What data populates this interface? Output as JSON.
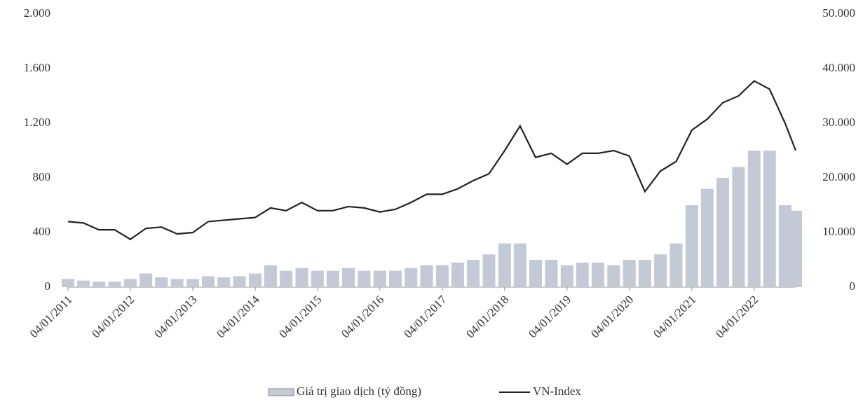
{
  "chart_data": {
    "type": "bar-line",
    "x": [
      "04/01/2011",
      "04/04/2011",
      "04/07/2011",
      "04/10/2011",
      "04/01/2012",
      "04/04/2012",
      "04/07/2012",
      "04/10/2012",
      "04/01/2013",
      "04/04/2013",
      "04/07/2013",
      "04/10/2013",
      "04/01/2014",
      "04/04/2014",
      "04/07/2014",
      "04/10/2014",
      "04/01/2015",
      "04/04/2015",
      "04/07/2015",
      "04/10/2015",
      "04/01/2016",
      "04/04/2016",
      "04/07/2016",
      "04/10/2016",
      "04/01/2017",
      "04/04/2017",
      "04/07/2017",
      "04/10/2017",
      "04/01/2018",
      "04/04/2018",
      "04/07/2018",
      "04/10/2018",
      "04/01/2019",
      "04/04/2019",
      "04/07/2019",
      "04/10/2019",
      "04/01/2020",
      "04/04/2020",
      "04/07/2020",
      "04/10/2020",
      "04/01/2021",
      "04/04/2021",
      "04/07/2021",
      "04/10/2021",
      "04/01/2022",
      "04/04/2022",
      "04/07/2022",
      "04/09/2022"
    ],
    "xlim": [
      "04/01/2011",
      "04/09/2022"
    ],
    "xticks": [
      "04/01/2011",
      "04/01/2012",
      "04/01/2013",
      "04/01/2014",
      "04/01/2015",
      "04/01/2016",
      "04/01/2017",
      "04/01/2018",
      "04/01/2019",
      "04/01/2020",
      "04/01/2021",
      "04/01/2022"
    ],
    "series": [
      {
        "name": "Giá trị giao dịch (tỷ đồng)",
        "type": "bar",
        "axis": "y2",
        "color": "#c4c9d6",
        "values": [
          1500,
          1200,
          1000,
          1000,
          1500,
          2500,
          1800,
          1500,
          1500,
          2000,
          1800,
          2000,
          2500,
          4000,
          3000,
          3500,
          3000,
          3000,
          3500,
          3000,
          3000,
          3000,
          3500,
          4000,
          4000,
          4500,
          5000,
          6000,
          8000,
          8000,
          5000,
          5000,
          4000,
          4500,
          4500,
          4000,
          5000,
          5000,
          6000,
          8000,
          15000,
          18000,
          20000,
          22000,
          25000,
          25000,
          15000,
          14000
        ]
      },
      {
        "name": "VN-Index",
        "type": "line",
        "axis": "y",
        "color": "#222222",
        "values": [
          480,
          470,
          420,
          420,
          350,
          430,
          440,
          390,
          400,
          480,
          490,
          500,
          510,
          580,
          560,
          620,
          560,
          560,
          590,
          580,
          550,
          570,
          620,
          680,
          680,
          720,
          780,
          830,
          1000,
          1180,
          950,
          980,
          900,
          980,
          980,
          1000,
          960,
          700,
          850,
          920,
          1150,
          1230,
          1350,
          1400,
          1510,
          1450,
          1200,
          1000
        ]
      }
    ],
    "ylim": [
      0,
      2000
    ],
    "yticks": [
      0,
      400,
      800,
      {
        "value": 1200,
        "label": "1.200"
      },
      {
        "value": 1600,
        "label": "1.600"
      },
      {
        "value": 2000,
        "label": "2.000"
      }
    ],
    "y2lim": [
      0,
      50000
    ],
    "y2ticks": [
      0,
      {
        "value": 10000,
        "label": "10.000"
      },
      {
        "value": 20000,
        "label": "20.000"
      },
      {
        "value": 30000,
        "label": "30.000"
      },
      {
        "value": 40000,
        "label": "40.000"
      },
      {
        "value": 50000,
        "label": "50.000"
      }
    ],
    "legend": "bottom"
  }
}
